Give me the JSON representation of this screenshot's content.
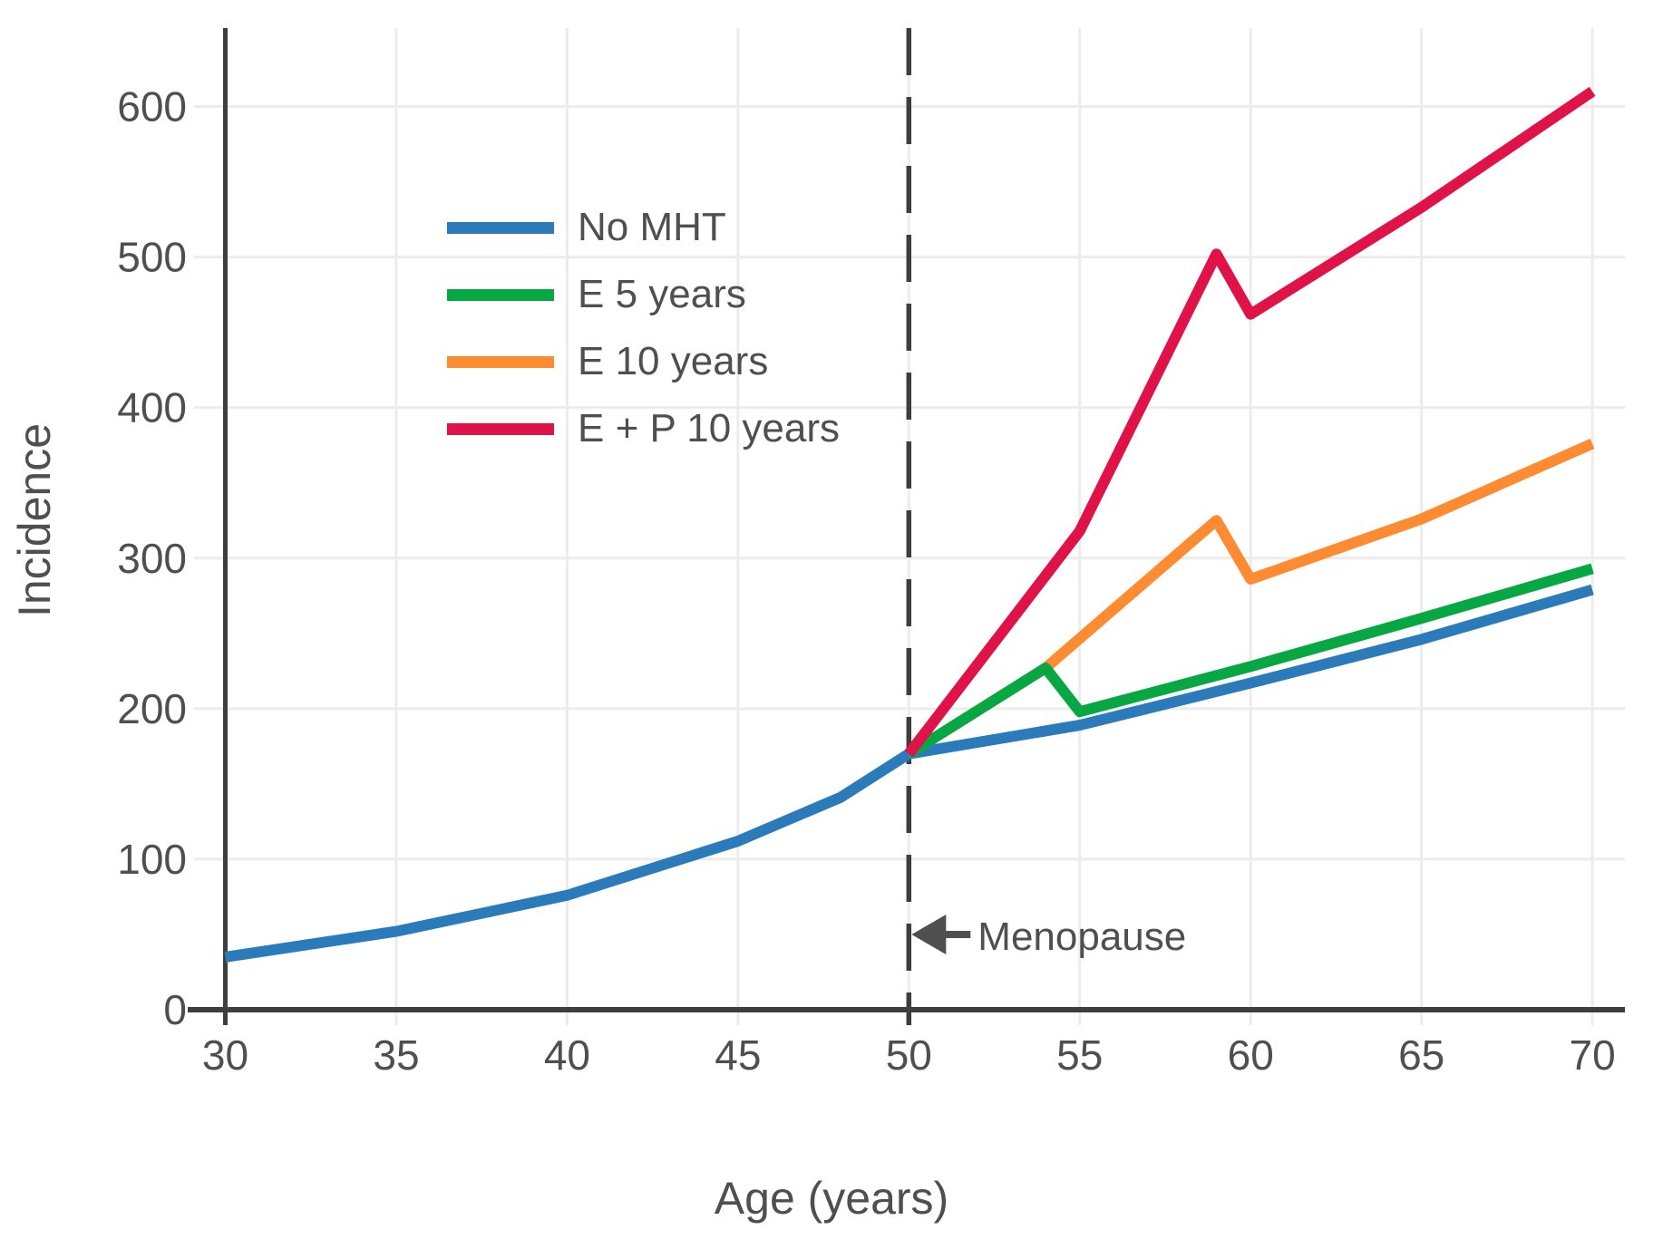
{
  "chart_data": {
    "type": "line",
    "title": "",
    "xlabel": "Age (years)",
    "ylabel": "Incidence",
    "x_ticks": [
      30,
      35,
      40,
      45,
      50,
      55,
      60,
      65,
      70
    ],
    "y_ticks": [
      0,
      100,
      200,
      300,
      400,
      500,
      600
    ],
    "xlim": [
      30,
      71
    ],
    "ylim": [
      0,
      652
    ],
    "grid": true,
    "legend_position": "upper-left-inside",
    "annotation": {
      "text": "Menopause",
      "arrow": "left",
      "at_age": 50
    },
    "reference_line": {
      "at_age": 50,
      "style": "dashed"
    },
    "series": [
      {
        "name": "No MHT",
        "color": "#2B7BBA",
        "points": [
          [
            30,
            35
          ],
          [
            35,
            52
          ],
          [
            40,
            76
          ],
          [
            45,
            112
          ],
          [
            48,
            141
          ],
          [
            50,
            170
          ],
          [
            55,
            189
          ],
          [
            60,
            217
          ],
          [
            65,
            246
          ],
          [
            70,
            279
          ]
        ]
      },
      {
        "name": "E 5 years",
        "color": "#07A844",
        "points": [
          [
            50,
            170
          ],
          [
            54,
            227
          ],
          [
            55,
            198
          ],
          [
            60,
            228
          ],
          [
            65,
            260
          ],
          [
            70,
            293
          ]
        ]
      },
      {
        "name": "E 10 years",
        "color": "#FD8B31",
        "points": [
          [
            50,
            170
          ],
          [
            54,
            227
          ],
          [
            59,
            325
          ],
          [
            60,
            286
          ],
          [
            65,
            326
          ],
          [
            70,
            376
          ]
        ]
      },
      {
        "name": "E + P 10 years",
        "color": "#E01348",
        "points": [
          [
            50,
            170
          ],
          [
            55,
            318
          ],
          [
            59,
            502
          ],
          [
            60,
            462
          ],
          [
            65,
            533
          ],
          [
            70,
            610
          ]
        ]
      }
    ]
  },
  "colors": {
    "background": "#FFFFFF",
    "grid": "#ECECEC",
    "axis": "#3E3E3E",
    "text": "#4F4F4F"
  }
}
